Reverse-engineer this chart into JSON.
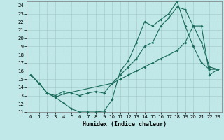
{
  "xlabel": "Humidex (Indice chaleur)",
  "bg_color": "#c0e8e8",
  "line_color": "#1a6b5a",
  "grid_color": "#a8cccc",
  "xlim": [
    -0.5,
    23.5
  ],
  "ylim": [
    11,
    24.5
  ],
  "xticks": [
    0,
    1,
    2,
    3,
    4,
    5,
    6,
    7,
    8,
    9,
    10,
    11,
    12,
    13,
    14,
    15,
    16,
    17,
    18,
    19,
    20,
    21,
    22,
    23
  ],
  "yticks": [
    11,
    12,
    13,
    14,
    15,
    16,
    17,
    18,
    19,
    20,
    21,
    22,
    23,
    24
  ],
  "line1_x": [
    0,
    1,
    2,
    3,
    4,
    5,
    6,
    7,
    8,
    9,
    10,
    11,
    12,
    13,
    14,
    15,
    16,
    17,
    18,
    19,
    20,
    21,
    22,
    23
  ],
  "line1_y": [
    15.5,
    14.5,
    13.3,
    12.8,
    12.1,
    11.4,
    11.0,
    11.0,
    11.0,
    11.1,
    12.5,
    16.0,
    17.2,
    19.5,
    22.0,
    21.5,
    22.3,
    23.0,
    24.5,
    21.5,
    19.0,
    17.0,
    16.2,
    16.2
  ],
  "line2_x": [
    0,
    1,
    2,
    3,
    4,
    5,
    6,
    7,
    8,
    9,
    10,
    11,
    12,
    13,
    14,
    15,
    16,
    17,
    18,
    19,
    20,
    21,
    22,
    23
  ],
  "line2_y": [
    15.5,
    14.5,
    13.3,
    13.0,
    13.5,
    13.3,
    13.0,
    13.3,
    13.5,
    13.3,
    14.5,
    15.5,
    16.5,
    17.5,
    19.0,
    19.5,
    21.5,
    22.5,
    23.8,
    23.5,
    21.5,
    19.5,
    16.5,
    16.2
  ],
  "line3_x": [
    0,
    1,
    2,
    3,
    4,
    10,
    11,
    12,
    13,
    14,
    15,
    16,
    17,
    18,
    19,
    20,
    21,
    22,
    23
  ],
  "line3_y": [
    15.5,
    14.5,
    13.3,
    12.8,
    13.2,
    14.5,
    15.0,
    15.5,
    16.0,
    16.5,
    17.0,
    17.5,
    18.0,
    18.5,
    19.5,
    21.5,
    21.5,
    15.5,
    16.2
  ]
}
